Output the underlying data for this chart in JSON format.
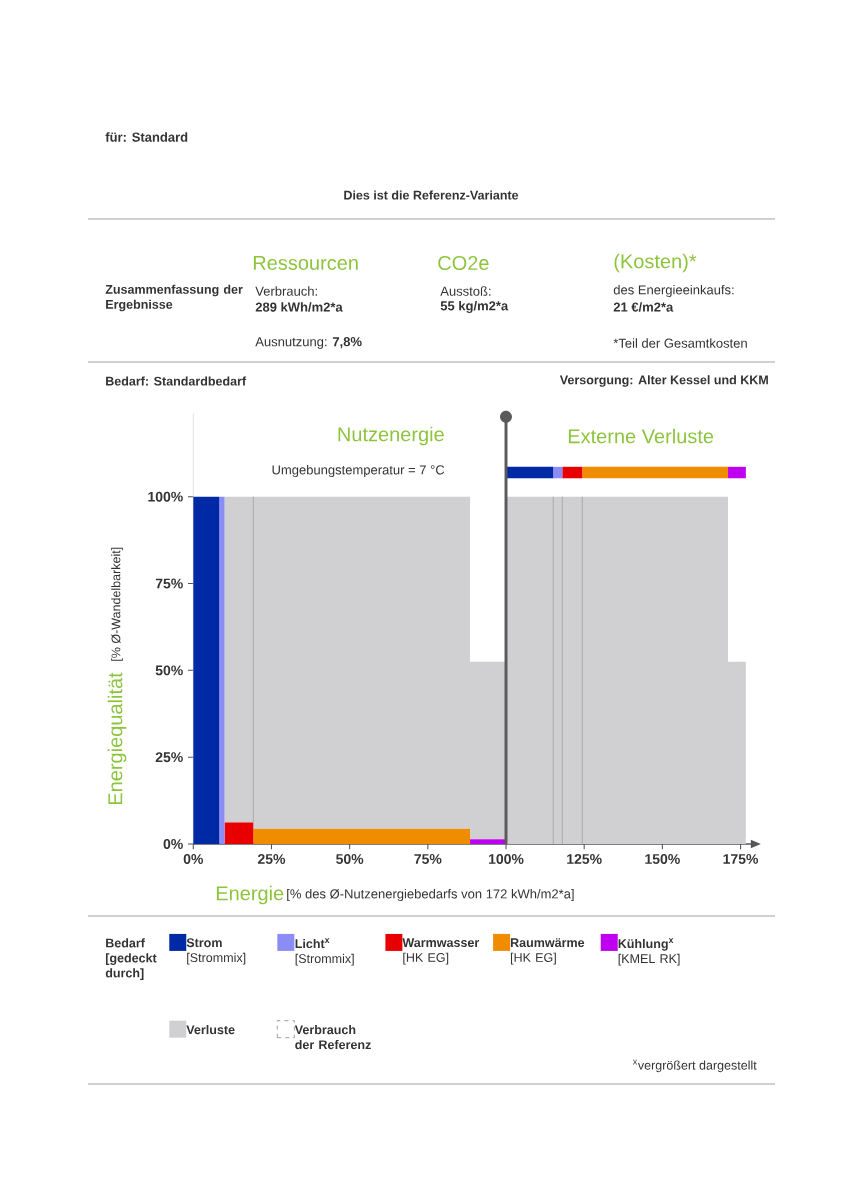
{
  "chart_data": {
    "type": "area",
    "title": "Dies ist die Referenz-Variante",
    "subtitle": "für: Standard",
    "xlabel": "Energie",
    "ylabel": "Energiequalität",
    "legend_title": "Bedarf [gedeckt durch]",
    "legend": "bottom",
    "xlim": [
      0,
      178.5
    ],
    "ylim": [
      0,
      124
    ],
    "xticks": [
      {
        "value": 0,
        "label": "0%"
      },
      {
        "value": 25,
        "label": "25%"
      },
      {
        "value": 50,
        "label": "50%"
      },
      {
        "value": 75,
        "label": "75%"
      },
      {
        "value": 100,
        "label": "100%"
      },
      {
        "value": 125,
        "label": "125%"
      },
      {
        "value": 150,
        "label": "150%"
      },
      {
        "value": 175,
        "label": "175%"
      }
    ],
    "yticks": [
      {
        "value": 0,
        "label": "0%"
      },
      {
        "value": 25,
        "label": "25%"
      },
      {
        "value": 50,
        "label": "50%"
      },
      {
        "value": 75,
        "label": "75%"
      },
      {
        "value": 100,
        "label": "100%"
      }
    ],
    "ref_lines": [
      {
        "axis": "x",
        "value": 100,
        "color": "#5a5a5a"
      }
    ],
    "series": [
      {
        "name": "**Strom** [Strommix]",
        "color": "#0029a6",
        "x": [
          0,
          0,
          8.3,
          8.3
        ],
        "values": [
          0,
          100,
          100,
          0
        ]
      },
      {
        "name": "**Licht$^{x}$** [Strommix]",
        "color": "#8c8cf5",
        "x": [
          8.3,
          8.3,
          10,
          10
        ],
        "values": [
          0,
          100,
          100,
          0
        ]
      },
      {
        "name": "**Warmwasser** [HK EG]",
        "color": "#e80000",
        "x": [
          10,
          10,
          19.2,
          19.2
        ],
        "values": [
          0,
          6.2,
          6.2,
          0
        ]
      },
      {
        "name": "**Raumwärme** [HK EG]",
        "color": "#f08c00",
        "x": [
          19.2,
          19.2,
          88.5,
          88.5
        ],
        "values": [
          0,
          4.4,
          4.4,
          0
        ]
      },
      {
        "name": "**Kühlung$^{x}$** [KMEL RK]",
        "color": "#bf00f0",
        "x": [
          88.5,
          88.5,
          100,
          100
        ],
        "values": [
          0,
          1.4,
          1.4,
          0
        ]
      },
      {
        "name": "**Verluste**",
        "color": "#d0d0d2",
        "x": [
          10,
          10,
          88.5,
          88.5,
          100,
          100,
          171,
          171,
          176.7,
          176.7,
          100,
          100,
          88.5,
          88.5,
          19.2,
          19.2
        ],
        "values": [
          6.2,
          100,
          100,
          52.5,
          52.5,
          100,
          100,
          52.5,
          52.5,
          0,
          0,
          1.4,
          1.4,
          4.4,
          4.4,
          6.2
        ]
      },
      {
        "name": "**Verbrauch der Referenz**",
        "color": "#ffffff",
        "line_style": "dashed"
      },
      {
        "type": "line",
        "color": "#a8a8a8",
        "x": [
          19.2,
          19.2
        ],
        "values": [
          6.2,
          100
        ]
      },
      {
        "type": "line",
        "color": "#a8a8a8",
        "x": [
          115.1,
          115.1
        ],
        "values": [
          0,
          100
        ]
      },
      {
        "type": "line",
        "color": "#a8a8a8",
        "x": [
          118,
          118
        ],
        "values": [
          0,
          100
        ]
      },
      {
        "type": "line",
        "color": "#a8a8a8",
        "x": [
          124.4,
          124.4
        ],
        "values": [
          0,
          100
        ]
      },
      {
        "color": "#0029a6",
        "x": [
          100,
          100,
          115.1,
          115.1
        ],
        "values": [
          105.3,
          108.6,
          108.6,
          105.3
        ]
      },
      {
        "color": "#8c8cf5",
        "x": [
          115.1,
          115.1,
          118,
          118
        ],
        "values": [
          105.3,
          108.6,
          108.6,
          105.3
        ]
      },
      {
        "color": "#e80000",
        "x": [
          118,
          118,
          124.4,
          124.4
        ],
        "values": [
          105.3,
          108.6,
          108.6,
          105.3
        ]
      },
      {
        "color": "#f08c00",
        "x": [
          124.4,
          124.4,
          171,
          171
        ],
        "values": [
          105.3,
          108.6,
          108.6,
          105.3
        ]
      },
      {
        "color": "#bf00f0",
        "x": [
          171,
          171,
          176.7,
          176.7
        ],
        "values": [
          105.3,
          108.6,
          108.6,
          105.3
        ]
      }
    ],
    "annotations": [
      "Zusammenfassung der Ergebnisse",
      "Ressourcen",
      "Verbrauch:",
      "289 kWh/m2*a",
      "Ausnutzung: **7,8%**",
      "CO2e",
      "Ausstoß:",
      "55 kg/m2*a",
      "(Kosten)*",
      "des Energieeinkaufs:",
      "21 €/m2*a",
      "*Teil der Gesamtkosten",
      "Bedarf: Standardbedarf",
      "Versorgung: Alter Kessel und KKM",
      "Nutzenergie",
      "Umgebungstemperatur = 7 °C",
      "Externe Verluste",
      "[% Ø-Wandelbarkeit]",
      "[% des Ø-Nutzenergiebedarfs von 172 kWh/m2*a]",
      "$^{x}$vergrößert dargestellt"
    ]
  }
}
